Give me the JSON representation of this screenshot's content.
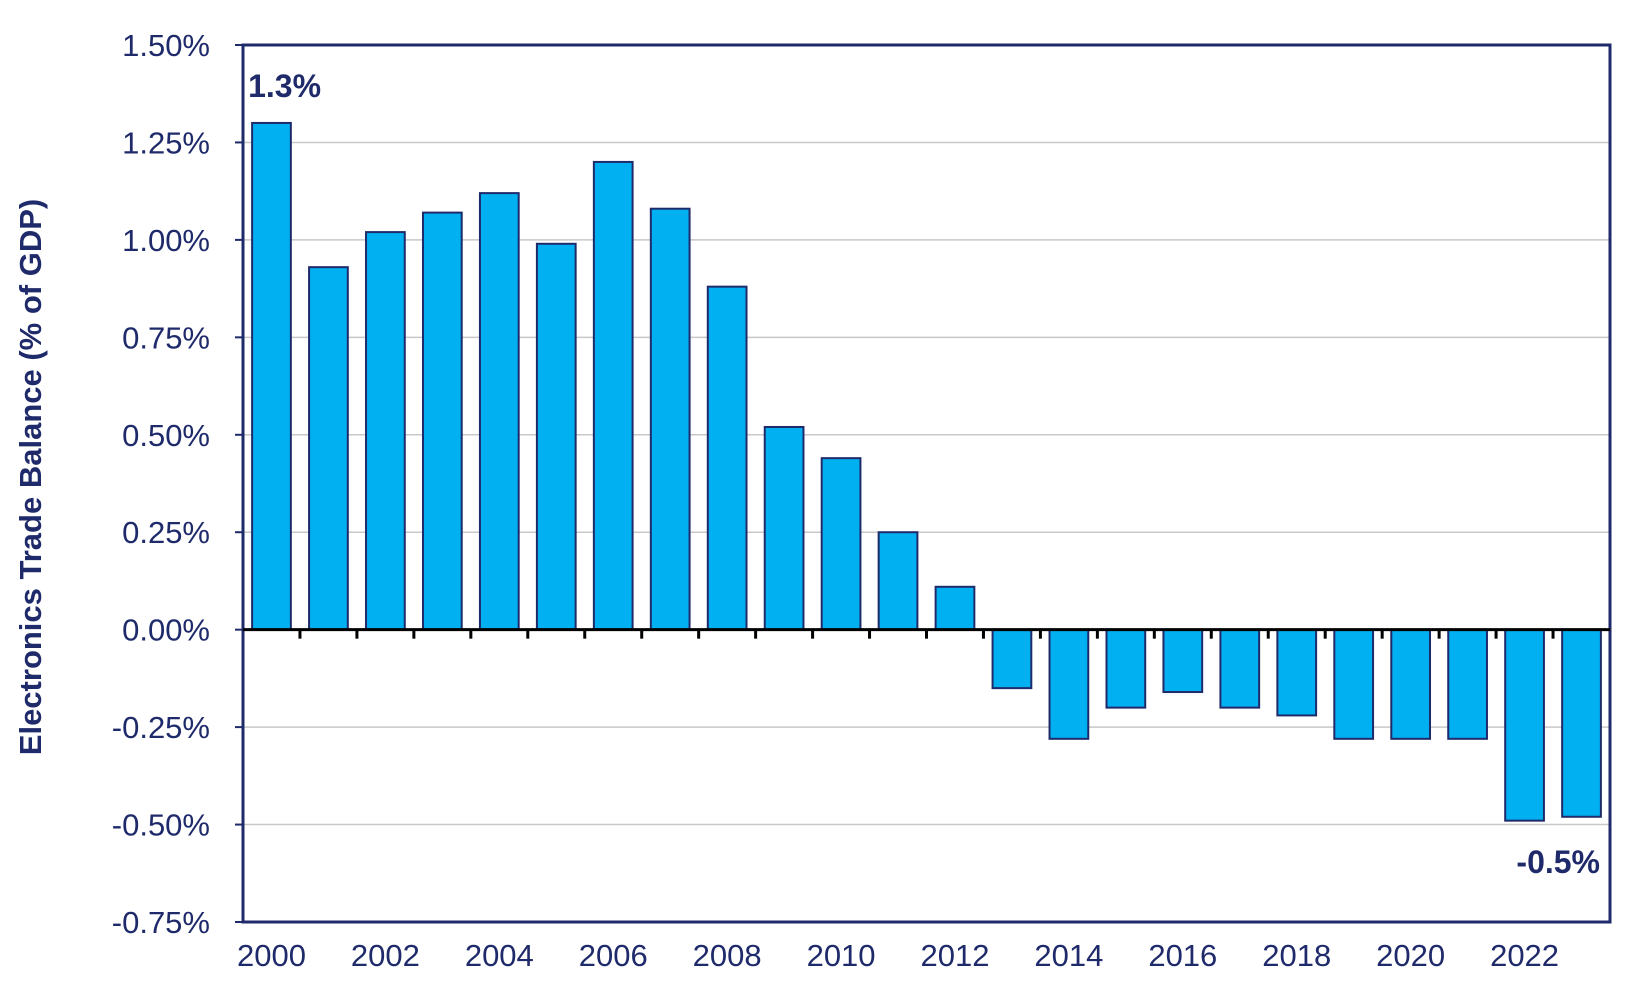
{
  "colors": {
    "bar_fill": "#00b0f0",
    "bar_stroke": "#1f2a6b",
    "axis": "#1f2a6b",
    "grid": "#c8c8c8",
    "text": "#1f2a6b"
  },
  "chart_data": {
    "type": "bar",
    "title": "",
    "xlabel": "",
    "ylabel": "Electronics Trade Balance (% of GDP)",
    "ylim": [
      -0.75,
      1.5
    ],
    "yticks": [
      "1.50%",
      "1.25%",
      "1.00%",
      "0.75%",
      "0.50%",
      "0.25%",
      "0.00%",
      "-0.25%",
      "-0.50%",
      "-0.75%"
    ],
    "ytick_values": [
      1.5,
      1.25,
      1.0,
      0.75,
      0.5,
      0.25,
      0.0,
      -0.25,
      -0.5,
      -0.75
    ],
    "categories": [
      "2000",
      "2001",
      "2002",
      "2003",
      "2004",
      "2005",
      "2006",
      "2007",
      "2008",
      "2009",
      "2010",
      "2011",
      "2012",
      "2013",
      "2014",
      "2015",
      "2016",
      "2017",
      "2018",
      "2019",
      "2020",
      "2021",
      "2022",
      "2023"
    ],
    "xtick_labels": [
      "2000",
      "",
      "2002",
      "",
      "2004",
      "",
      "2006",
      "",
      "2008",
      "",
      "2010",
      "",
      "2012",
      "",
      "2014",
      "",
      "2016",
      "",
      "2018",
      "",
      "2020",
      "",
      "2022",
      ""
    ],
    "values": [
      1.3,
      0.93,
      1.02,
      1.07,
      1.12,
      0.99,
      1.2,
      1.08,
      0.88,
      0.52,
      0.44,
      0.25,
      0.11,
      -0.15,
      -0.28,
      -0.2,
      -0.16,
      -0.2,
      -0.22,
      -0.28,
      -0.28,
      -0.28,
      -0.49,
      -0.48
    ],
    "grid": true,
    "annotations": [
      {
        "text": "1.3%",
        "category": "2000"
      },
      {
        "text": "-0.5%",
        "category": "2023"
      }
    ]
  }
}
